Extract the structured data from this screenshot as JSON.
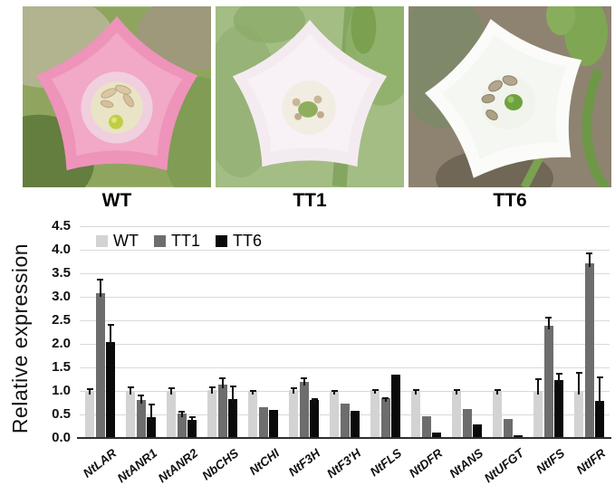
{
  "figure": {
    "panels": [
      {
        "label": "WT",
        "petal_color": "#ee93ba"
      },
      {
        "label": "TT1",
        "petal_color": "#f4ebf1"
      },
      {
        "label": "TT6",
        "petal_color": "#fcfdfb"
      }
    ]
  },
  "chart_data": {
    "type": "bar",
    "title": "",
    "xlabel": "",
    "ylabel": "Relative expression",
    "ylim": [
      0,
      4.5
    ],
    "yticks": [
      "0.0",
      "0.5",
      "1.0",
      "1.5",
      "2.0",
      "2.5",
      "3.0",
      "3.5",
      "4.0",
      "4.5"
    ],
    "grid": true,
    "legend_position": "top-left-inside",
    "categories": [
      "NtLAR",
      "NtANR1",
      "NtANR2",
      "NbCHS",
      "NtCHI",
      "NtF3H",
      "NtF3'H",
      "NtFLS",
      "NtDFR",
      "NtANS",
      "NtUFGT",
      "NtIFS",
      "NtIFR"
    ],
    "series": [
      {
        "name": "WT",
        "color": "#d3d3d3",
        "values": [
          1.0,
          1.0,
          1.0,
          1.02,
          1.0,
          1.02,
          1.0,
          1.01,
          1.0,
          1.0,
          1.0,
          1.0,
          1.0
        ],
        "errors": [
          0.06,
          0.09,
          0.07,
          0.08,
          0.02,
          0.06,
          0.02,
          0.02,
          0.03,
          0.03,
          0.03,
          0.27,
          0.4
        ]
      },
      {
        "name": "TT1",
        "color": "#6d6d6d",
        "values": [
          3.08,
          0.8,
          0.52,
          1.13,
          0.66,
          1.19,
          0.73,
          0.84,
          0.46,
          0.62,
          0.4,
          2.38,
          3.72
        ],
        "errors": [
          0.3,
          0.13,
          0.05,
          0.16,
          0,
          0.09,
          0,
          0.02,
          0,
          0,
          0,
          0.19,
          0.22
        ]
      },
      {
        "name": "TT6",
        "color": "#0a0a0a",
        "values": [
          2.03,
          0.45,
          0.38,
          0.83,
          0.6,
          0.8,
          0.58,
          1.34,
          0.12,
          0.29,
          0.05,
          1.24,
          0.78
        ],
        "errors": [
          0.39,
          0.28,
          0.08,
          0.29,
          0,
          0.05,
          0,
          0,
          0,
          0,
          0,
          0.15,
          0.52
        ]
      }
    ]
  }
}
